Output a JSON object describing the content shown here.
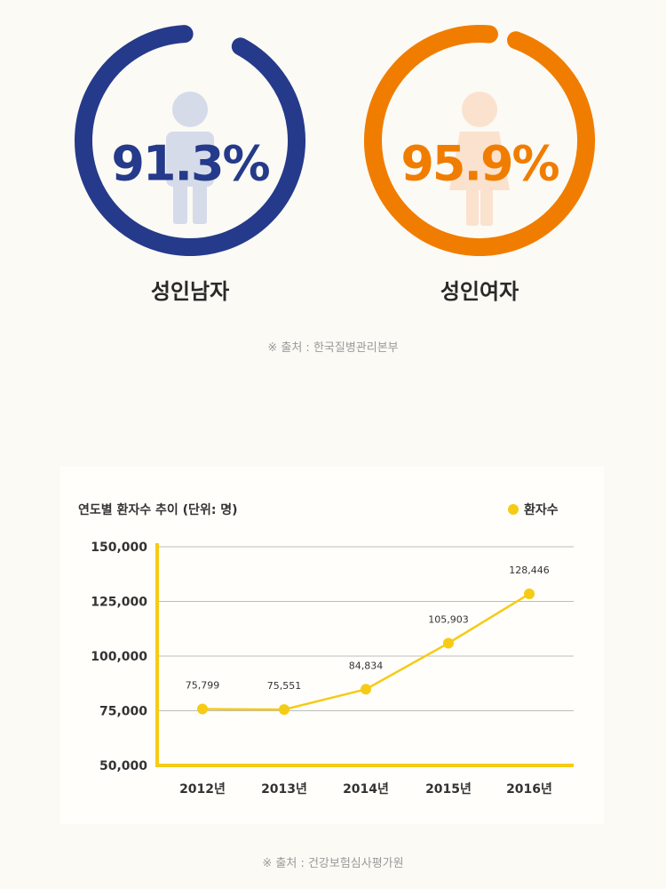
{
  "colors": {
    "male": "#253a8a",
    "female": "#f07d00",
    "line": "#f5cb16"
  },
  "rings": [
    {
      "id": "male",
      "value_text": "91.3%",
      "fraction": 0.913,
      "label": "성인남자",
      "figure_icon": "man-silhouette-icon"
    },
    {
      "id": "female",
      "value_text": "95.9%",
      "fraction": 0.959,
      "label": "성인여자",
      "figure_icon": "woman-silhouette-icon"
    }
  ],
  "source_top": "※ 출처 : 한국질병관리본부",
  "source_bottom": "※ 출처 : 건강보험심사평가원",
  "chart_data": {
    "type": "line",
    "title": "연도별 환자수 추이 (단위: 명)",
    "legend": "환자수",
    "legend_position": "top-right",
    "categories": [
      "2012년",
      "2013년",
      "2014년",
      "2015년",
      "2016년"
    ],
    "series": [
      {
        "name": "환자수",
        "values": [
          75799,
          75551,
          84834,
          105903,
          128446
        ]
      }
    ],
    "value_labels": [
      "75,799",
      "75,551",
      "84,834",
      "105,903",
      "128,446"
    ],
    "ylim": [
      50000,
      150000
    ],
    "yticks": [
      50000,
      75000,
      100000,
      125000,
      150000
    ],
    "ytick_labels": [
      "50,000",
      "75,000",
      "100,000",
      "125,000",
      "150,000"
    ],
    "grid": true
  }
}
